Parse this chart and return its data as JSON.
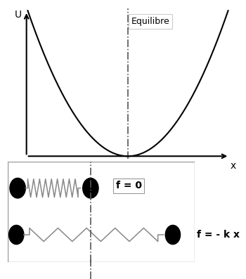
{
  "parabola_color": "#000000",
  "axis_color": "#000000",
  "dash_line_color": "#555555",
  "spring1_color": "#888888",
  "spring2_color": "#888888",
  "ball_color": "#000000",
  "equilibre_label": "Equilibre",
  "f0_label": "f = 0",
  "fkx_label": "f = - k x",
  "xlabel": "x",
  "ylabel": "U",
  "parabola_xlim": [
    -1.6,
    1.6
  ],
  "parabola_ylim": [
    0,
    2.6
  ],
  "spring1_n_teeth": 8,
  "spring2_n_teeth": 4,
  "spring1_amplitude": 0.38,
  "spring2_amplitude": 0.28
}
